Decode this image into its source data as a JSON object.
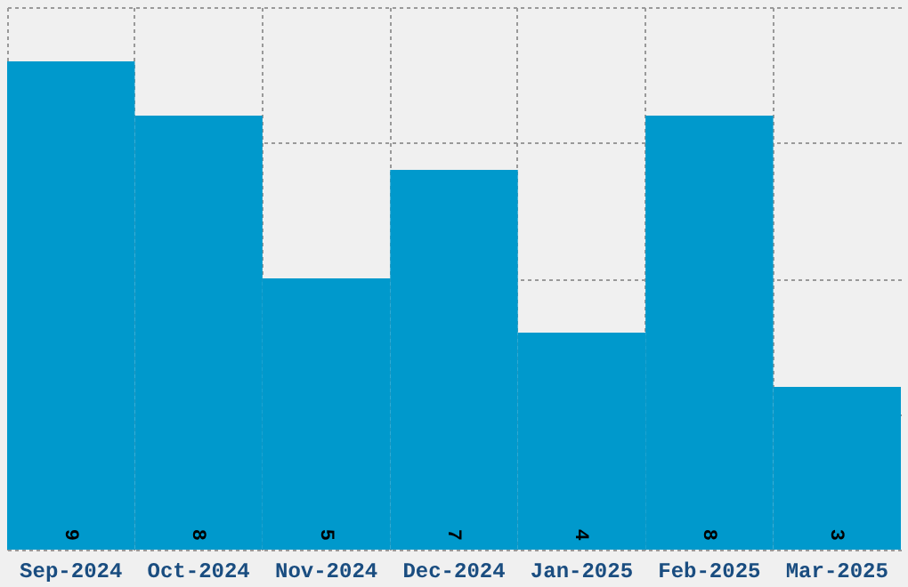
{
  "chart_data": {
    "type": "bar",
    "categories": [
      "Sep-2024",
      "Oct-2024",
      "Nov-2024",
      "Dec-2024",
      "Jan-2025",
      "Feb-2025",
      "Mar-2025"
    ],
    "values": [
      9,
      8,
      5,
      7,
      4,
      8,
      3
    ],
    "color": "#0099cc",
    "ylim": [
      0,
      10
    ],
    "yticks": [
      {
        "value": 0,
        "label": null
      },
      {
        "value": 2.5,
        "label": null
      },
      {
        "value": 5,
        "label": null
      },
      {
        "value": 7.5,
        "label": null
      },
      {
        "value": 10,
        "label": null
      }
    ],
    "grid": true,
    "data_labels": true,
    "tick_labels": "x"
  }
}
